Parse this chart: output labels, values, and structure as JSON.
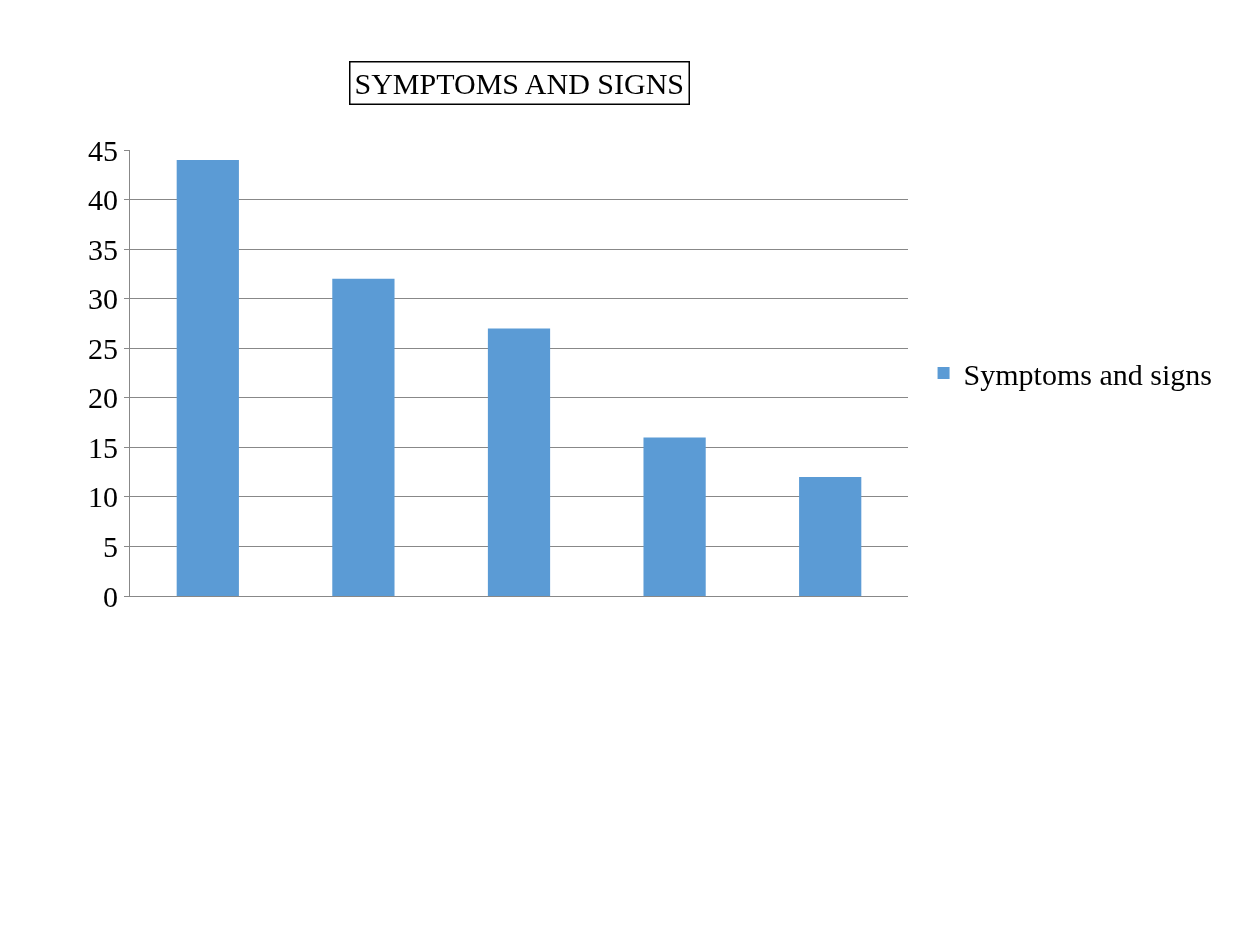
{
  "chart_data": {
    "type": "bar",
    "title": "SYMPTOMS AND SIGNS",
    "categories": [
      null,
      null,
      null,
      null,
      null
    ],
    "series": [
      {
        "name": "Symptoms and signs",
        "color": "#5b9bd5",
        "values": [
          44,
          32,
          27,
          16,
          12
        ]
      }
    ],
    "ylim": [
      0,
      45
    ],
    "yticks": [
      0,
      5,
      10,
      15,
      20,
      25,
      30,
      35,
      40,
      45
    ],
    "grid": "y",
    "legend": "right"
  }
}
